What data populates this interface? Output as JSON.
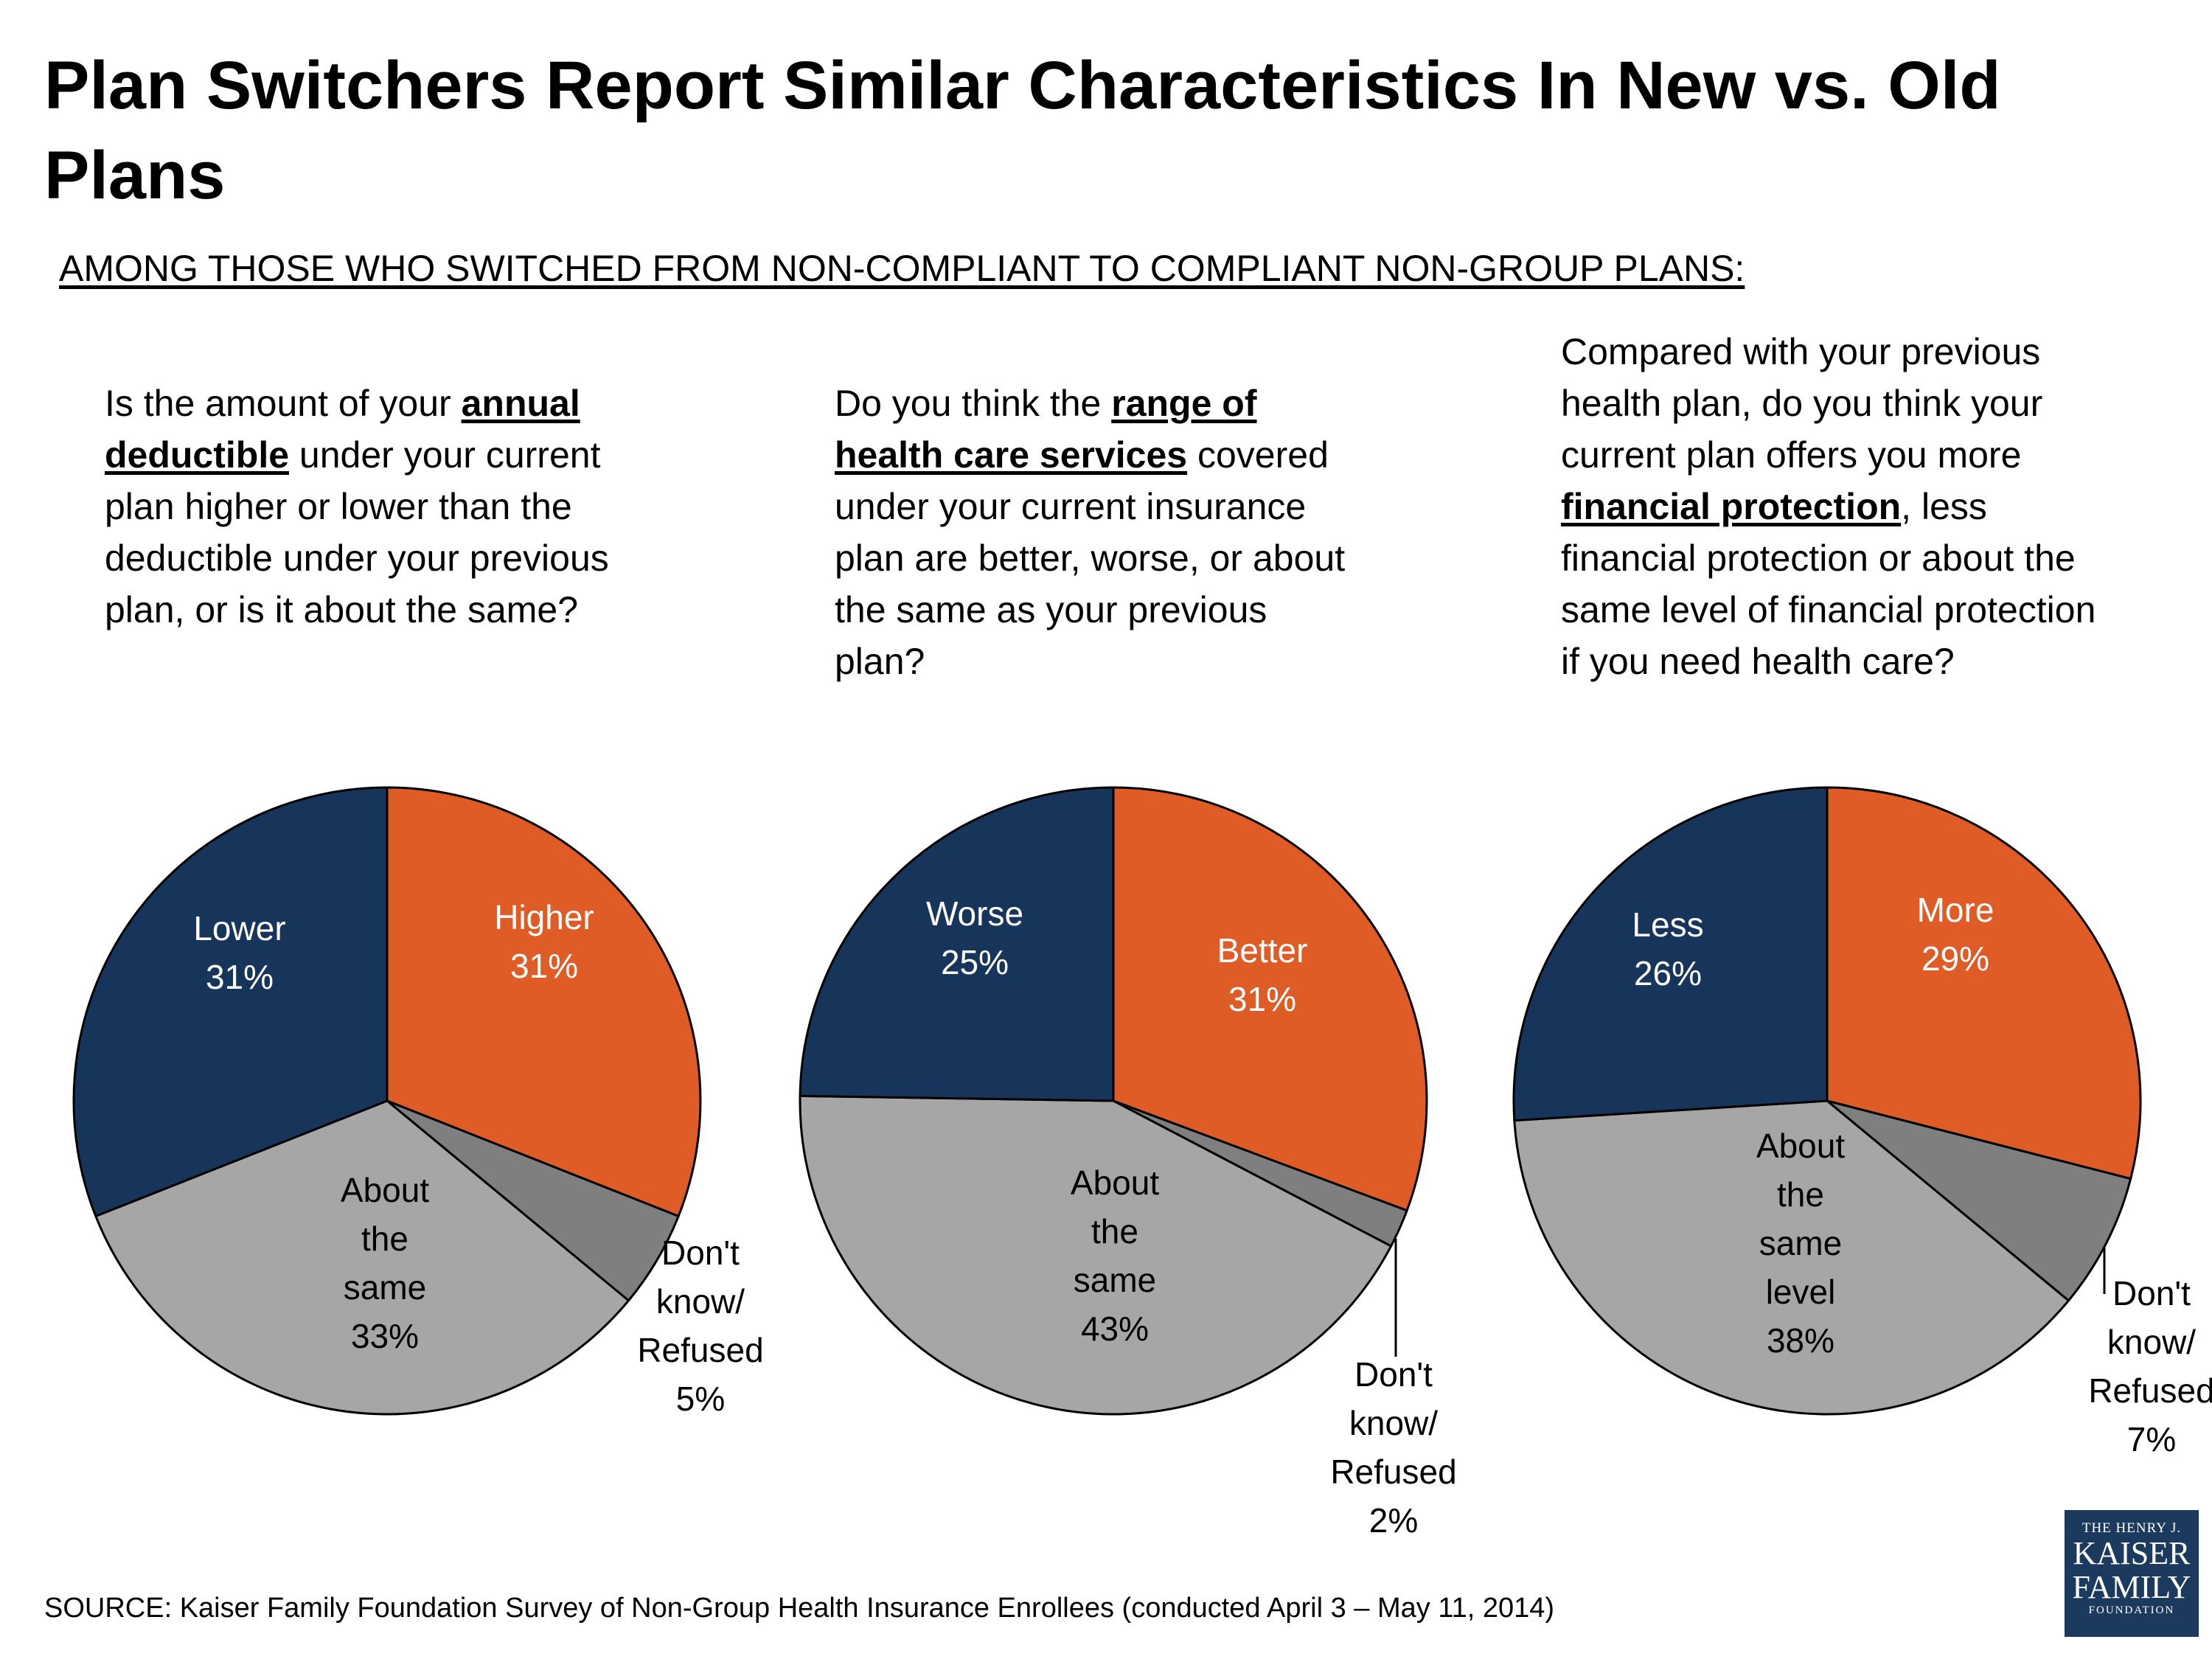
{
  "title": "Plan Switchers Report Similar Characteristics In New vs. Old Plans",
  "subtitle": "AMONG THOSE WHO SWITCHED FROM NON-COMPLIANT TO COMPLIANT NON-GROUP PLANS:",
  "questions": [
    {
      "pre": "Is the amount of your ",
      "em": "annual deductible",
      "post": " under your current plan higher or lower than the deductible under your previous plan, or is it about the same?"
    },
    {
      "pre": "Do you think the ",
      "em": "range of health care services",
      "post": " covered under your current insurance plan are better, worse, or about the same as your previous plan?"
    },
    {
      "pre": "Compared with your previous health plan, do you think your current plan offers you more ",
      "em": "financial protection",
      "post": ", less financial protection or about the same level of financial protection if you need health care?"
    }
  ],
  "colors": {
    "orange": "#e05c27",
    "navy": "#17355a",
    "dark_gray": "#7f7f7f",
    "light_gray": "#a6a6a6"
  },
  "chart_data": [
    {
      "type": "pie",
      "title": "Annual deductible",
      "slices": [
        {
          "label": "Higher",
          "value": 31,
          "color": "orange",
          "text_color": "#ffffff"
        },
        {
          "label": "Don't know/ Refused",
          "value": 5,
          "color": "dark_gray",
          "text_color": "#000000",
          "outside": true
        },
        {
          "label": "About the same",
          "value": 33,
          "color": "light_gray",
          "text_color": "#000000"
        },
        {
          "label": "Lower",
          "value": 31,
          "color": "navy",
          "text_color": "#ffffff"
        }
      ]
    },
    {
      "type": "pie",
      "title": "Range of health care services",
      "slices": [
        {
          "label": "Better",
          "value": 31,
          "color": "orange",
          "text_color": "#ffffff"
        },
        {
          "label": "Don't know/ Refused",
          "value": 2,
          "color": "dark_gray",
          "text_color": "#000000",
          "outside": true
        },
        {
          "label": "About the same",
          "value": 43,
          "color": "light_gray",
          "text_color": "#000000"
        },
        {
          "label": "Worse",
          "value": 25,
          "color": "navy",
          "text_color": "#ffffff"
        }
      ]
    },
    {
      "type": "pie",
      "title": "Financial protection",
      "slices": [
        {
          "label": "More",
          "value": 29,
          "color": "orange",
          "text_color": "#ffffff"
        },
        {
          "label": "Don't know/ Refused",
          "value": 7,
          "color": "dark_gray",
          "text_color": "#000000",
          "outside": true
        },
        {
          "label": "About the same level",
          "value": 38,
          "color": "light_gray",
          "text_color": "#000000"
        },
        {
          "label": "Less",
          "value": 26,
          "color": "navy",
          "text_color": "#ffffff"
        }
      ]
    }
  ],
  "source": "SOURCE: Kaiser Family Foundation Survey of Non-Group Health Insurance Enrollees (conducted April 3 – May 11, 2014)",
  "logo": {
    "line1": "THE HENRY J.",
    "line2": "KAISER",
    "line3": "FAMILY",
    "line4": "FOUNDATION"
  }
}
